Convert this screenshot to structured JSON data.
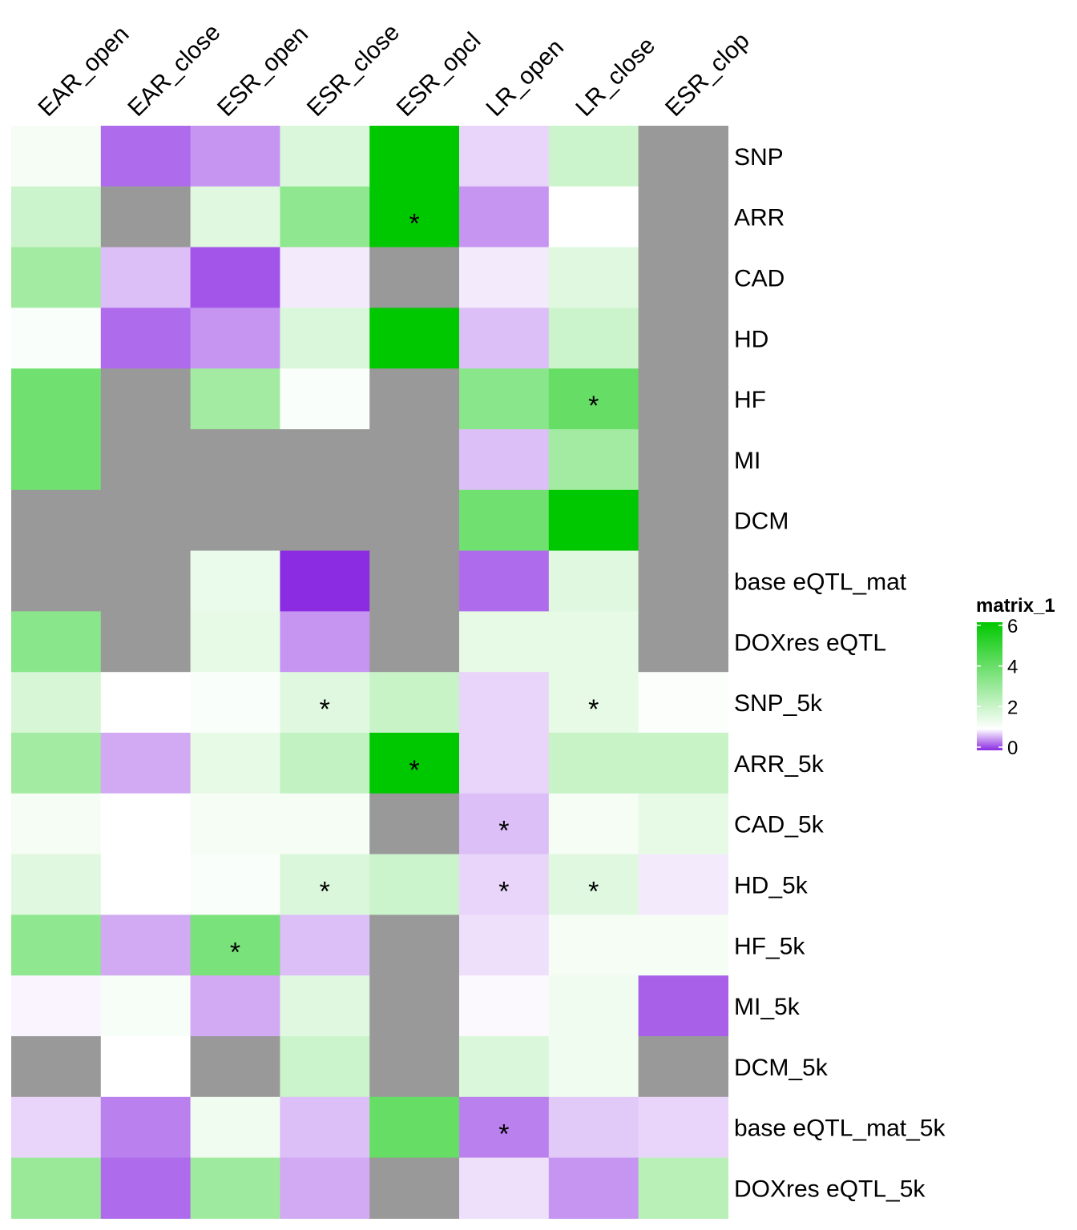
{
  "chart_data": {
    "type": "heatmap",
    "columns": [
      "EAR_open",
      "EAR_close",
      "ESR_open",
      "ESR_close",
      "ESR_opcl",
      "LR_open",
      "LR_close",
      "ESR_clop"
    ],
    "rows": [
      "SNP",
      "ARR",
      "CAD",
      "HD",
      "HF",
      "MI",
      "DCM",
      "base eQTL_mat",
      "DOXres eQTL",
      "SNP_5k",
      "ARR_5k",
      "CAD_5k",
      "HD_5k",
      "HF_5k",
      "MI_5k",
      "DCM_5k",
      "base eQTL_mat_5k",
      "DOXres eQTL_5k"
    ],
    "values": [
      [
        1.2,
        0.3,
        0.5,
        1.7,
        6.0,
        0.8,
        2.0,
        null
      ],
      [
        2.0,
        null,
        1.6,
        3.2,
        6.0,
        0.5,
        1.0,
        null
      ],
      [
        2.8,
        0.7,
        0.2,
        0.9,
        null,
        0.9,
        1.6,
        null
      ],
      [
        1.1,
        0.3,
        0.5,
        1.7,
        6.0,
        0.7,
        2.0,
        null
      ],
      [
        3.8,
        null,
        2.8,
        1.1,
        null,
        3.3,
        4.0,
        null
      ],
      [
        3.8,
        null,
        null,
        null,
        null,
        0.7,
        2.8,
        null
      ],
      [
        null,
        null,
        null,
        null,
        null,
        3.8,
        6.0,
        null
      ],
      [
        null,
        null,
        1.4,
        0.0,
        null,
        0.3,
        1.6,
        null
      ],
      [
        3.3,
        null,
        1.5,
        0.5,
        null,
        1.5,
        1.5,
        null
      ],
      [
        1.8,
        1.0,
        1.1,
        1.6,
        2.1,
        0.8,
        1.5,
        1.05
      ],
      [
        2.8,
        0.6,
        1.5,
        2.2,
        6.0,
        0.8,
        2.1,
        2.1
      ],
      [
        1.2,
        1.0,
        1.2,
        1.2,
        null,
        0.7,
        1.2,
        1.5
      ],
      [
        1.6,
        1.0,
        1.1,
        1.7,
        2.0,
        0.8,
        1.6,
        0.9
      ],
      [
        3.2,
        0.6,
        3.6,
        0.7,
        null,
        0.85,
        1.2,
        1.2
      ],
      [
        0.95,
        1.15,
        0.6,
        1.6,
        null,
        0.97,
        1.3,
        0.25
      ],
      [
        null,
        1.0,
        null,
        2.0,
        null,
        1.7,
        1.3,
        null
      ],
      [
        0.8,
        0.4,
        1.3,
        0.7,
        4.0,
        0.4,
        0.75,
        0.8
      ],
      [
        3.0,
        0.3,
        2.9,
        0.6,
        null,
        0.85,
        0.5,
        2.4
      ]
    ],
    "significance": [
      [
        false,
        false,
        false,
        false,
        false,
        false,
        false,
        false
      ],
      [
        false,
        false,
        false,
        false,
        true,
        false,
        false,
        false
      ],
      [
        false,
        false,
        false,
        false,
        false,
        false,
        false,
        false
      ],
      [
        false,
        false,
        false,
        false,
        false,
        false,
        false,
        false
      ],
      [
        false,
        false,
        false,
        false,
        false,
        false,
        true,
        false
      ],
      [
        false,
        false,
        false,
        false,
        false,
        false,
        false,
        false
      ],
      [
        false,
        false,
        false,
        false,
        false,
        false,
        false,
        false
      ],
      [
        false,
        false,
        false,
        false,
        false,
        false,
        false,
        false
      ],
      [
        false,
        false,
        false,
        false,
        false,
        false,
        false,
        false
      ],
      [
        false,
        false,
        false,
        true,
        false,
        false,
        true,
        false
      ],
      [
        false,
        false,
        false,
        false,
        true,
        false,
        false,
        false
      ],
      [
        false,
        false,
        false,
        false,
        false,
        true,
        false,
        false
      ],
      [
        false,
        false,
        false,
        true,
        false,
        true,
        true,
        false
      ],
      [
        false,
        false,
        true,
        false,
        false,
        false,
        false,
        false
      ],
      [
        false,
        false,
        false,
        false,
        false,
        false,
        false,
        false
      ],
      [
        false,
        false,
        false,
        false,
        false,
        false,
        false,
        false
      ],
      [
        false,
        false,
        false,
        false,
        false,
        true,
        false,
        false
      ],
      [
        false,
        false,
        false,
        false,
        false,
        false,
        false,
        false
      ]
    ],
    "significance_symbol": "*",
    "color_scale": {
      "low": "#8B2BE2",
      "mid": "#FFFFFF",
      "high": "#00C800",
      "domain": [
        0,
        1,
        6
      ],
      "na_color": "#999999"
    },
    "legend": {
      "title": "matrix_1",
      "ticks": [
        "0",
        "2",
        "4",
        "6"
      ],
      "position": "right"
    }
  }
}
